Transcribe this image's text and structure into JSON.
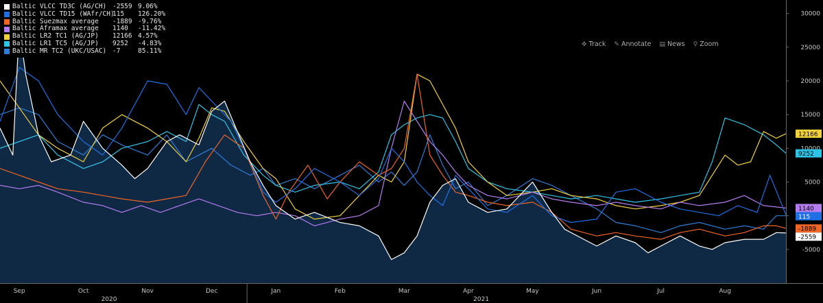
{
  "legend": [
    {
      "name": "Baltic VLCC TD3C (AG/CH)",
      "value": "-2559",
      "change": "9.06%",
      "color": "#ffffff"
    },
    {
      "name": "Baltic VLCC TD15 (WAfr/CH)",
      "value": "115",
      "change": "126.20%",
      "color": "#1f6fe5"
    },
    {
      "name": "Baltic Suezmax average",
      "value": "-1889",
      "change": "-9.76%",
      "color": "#f06424"
    },
    {
      "name": "Baltic Aframax average",
      "value": "1140",
      "change": "-11.42%",
      "color": "#b57cf0"
    },
    {
      "name": "Baltic LR2 TC1 (AG/JP)",
      "value": "12166",
      "change": "4.57%",
      "color": "#f2d23c"
    },
    {
      "name": "Baltic LR1 TC5 (AG/JP)",
      "value": "9252",
      "change": "-4.83%",
      "color": "#2ec4e6"
    },
    {
      "name": "Baltic MR TC2 (UKC/USAC)",
      "value": "-7",
      "change": "85.11%",
      "color": "#2f7dd6"
    }
  ],
  "toolbar": {
    "track": "Track",
    "annotate": "Annotate",
    "news": "News",
    "zoom": "Zoom"
  },
  "chart_data": {
    "type": "line",
    "x_unit": "month (Sep 2020 = 0)",
    "xlim": [
      -0.3,
      11.95
    ],
    "ylim": [
      -10000,
      32000
    ],
    "y_ticks": [
      -5000,
      0,
      5000,
      10000,
      15000,
      20000,
      25000,
      30000
    ],
    "y_tick_labels": [
      "-5000",
      "0",
      "5000",
      "10000",
      "15000",
      "20000",
      "25000",
      "30000"
    ],
    "x_ticks": [
      0,
      1,
      2,
      3,
      4,
      5,
      6,
      7,
      8,
      9,
      10,
      11
    ],
    "x_tick_labels": [
      "Sep",
      "Oct",
      "Nov",
      "Dec",
      "Jan",
      "Feb",
      "Mar",
      "Apr",
      "May",
      "Jun",
      "Jul",
      "Aug"
    ],
    "year_labels": [
      {
        "label": "2020",
        "x": 1.4
      },
      {
        "label": "2021",
        "x": 7.2
      }
    ],
    "year_boundary": 3.55,
    "grid": false,
    "axis_position": "right",
    "series": [
      {
        "name": "Baltic VLCC TD3C (AG/CH)",
        "color": "#ffffff",
        "fill": "#0f2945",
        "x": [
          -0.3,
          -0.1,
          0.0,
          0.1,
          0.3,
          0.5,
          0.8,
          1.0,
          1.3,
          1.6,
          1.8,
          2.0,
          2.3,
          2.5,
          2.8,
          3.0,
          3.2,
          3.4,
          3.6,
          3.8,
          4.0,
          4.3,
          4.6,
          5.0,
          5.3,
          5.6,
          5.8,
          6.0,
          6.2,
          6.4,
          6.6,
          6.8,
          7.0,
          7.3,
          7.6,
          8.0,
          8.3,
          8.5,
          8.8,
          9.0,
          9.3,
          9.6,
          9.8,
          10.0,
          10.3,
          10.6,
          10.8,
          11.0,
          11.3,
          11.6,
          11.8,
          11.95
        ],
        "y": [
          13000,
          9000,
          28000,
          21000,
          12000,
          8000,
          9000,
          14000,
          10000,
          7500,
          5500,
          7000,
          11000,
          12000,
          10500,
          15500,
          17000,
          12500,
          8000,
          4500,
          1500,
          -500,
          500,
          -1000,
          -1500,
          -3000,
          -6500,
          -5500,
          -3000,
          2000,
          4500,
          5500,
          2000,
          500,
          1000,
          5000,
          500,
          -2000,
          -3500,
          -4500,
          -3000,
          -4000,
          -5500,
          -4500,
          -3000,
          -4500,
          -5000,
          -4000,
          -3500,
          -3500,
          -2500,
          -2559
        ]
      },
      {
        "name": "Baltic VLCC TD15 (WAfr/CH)",
        "color": "#1f6fe5",
        "x": [
          -0.3,
          0.0,
          0.3,
          0.6,
          1.0,
          1.3,
          1.6,
          2.0,
          2.3,
          2.6,
          2.8,
          3.0,
          3.3,
          3.6,
          3.8,
          4.0,
          4.3,
          4.6,
          5.0,
          5.3,
          5.6,
          5.8,
          6.0,
          6.2,
          6.4,
          6.6,
          6.8,
          7.0,
          7.3,
          7.6,
          8.0,
          8.3,
          8.6,
          9.0,
          9.3,
          9.6,
          10.0,
          10.3,
          10.6,
          10.9,
          11.2,
          11.5,
          11.7,
          11.95
        ],
        "y": [
          14000,
          22000,
          20000,
          15000,
          11000,
          9000,
          13000,
          20000,
          19500,
          15000,
          19000,
          17000,
          14000,
          8000,
          3500,
          2000,
          4000,
          7000,
          5000,
          3000,
          5500,
          10000,
          8000,
          5000,
          3000,
          1500,
          6000,
          4000,
          1000,
          500,
          3000,
          0,
          -1000,
          -500,
          3500,
          4000,
          2000,
          1000,
          500,
          0,
          1500,
          500,
          6000,
          115
        ]
      },
      {
        "name": "Baltic Suezmax average",
        "color": "#f06424",
        "x": [
          -0.3,
          0.0,
          0.3,
          0.6,
          1.0,
          1.3,
          1.6,
          2.0,
          2.3,
          2.6,
          2.9,
          3.2,
          3.5,
          3.8,
          4.0,
          4.2,
          4.5,
          4.8,
          5.0,
          5.3,
          5.6,
          5.8,
          6.0,
          6.2,
          6.4,
          6.6,
          6.8,
          7.0,
          7.3,
          7.6,
          8.0,
          8.3,
          8.6,
          9.0,
          9.3,
          9.6,
          10.0,
          10.3,
          10.6,
          11.0,
          11.3,
          11.6,
          11.8,
          11.95
        ],
        "y": [
          7000,
          6000,
          5000,
          4000,
          3500,
          3000,
          2500,
          2000,
          2500,
          3000,
          8000,
          12000,
          10000,
          3000,
          -500,
          3500,
          7500,
          2500,
          5000,
          8000,
          6000,
          7000,
          10000,
          21000,
          9000,
          6000,
          3500,
          3000,
          2000,
          1500,
          2000,
          500,
          -2000,
          -3000,
          -2500,
          -3000,
          -3500,
          -2500,
          -2000,
          -3000,
          -2500,
          -1500,
          -1500,
          -1889
        ]
      },
      {
        "name": "Baltic Aframax average",
        "color": "#b57cf0",
        "x": [
          -0.3,
          0.0,
          0.3,
          0.6,
          1.0,
          1.3,
          1.6,
          1.9,
          2.2,
          2.5,
          2.8,
          3.1,
          3.4,
          3.7,
          4.0,
          4.3,
          4.6,
          5.0,
          5.3,
          5.6,
          5.8,
          6.0,
          6.2,
          6.4,
          6.6,
          6.8,
          7.0,
          7.3,
          7.6,
          8.0,
          8.3,
          8.6,
          9.0,
          9.3,
          9.6,
          10.0,
          10.3,
          10.6,
          11.0,
          11.3,
          11.6,
          11.95
        ],
        "y": [
          4500,
          4000,
          4500,
          3500,
          2000,
          1500,
          500,
          1500,
          500,
          1500,
          2500,
          1500,
          500,
          0,
          500,
          0,
          -1500,
          -500,
          0,
          1500,
          10000,
          17000,
          14000,
          11000,
          9000,
          6500,
          4500,
          3000,
          2500,
          3500,
          2500,
          2000,
          1500,
          2000,
          1500,
          1000,
          2000,
          1500,
          2000,
          3000,
          1500,
          1140
        ]
      },
      {
        "name": "Baltic LR2 TC1 (AG/JP)",
        "color": "#f2d23c",
        "x": [
          -0.3,
          0.0,
          0.3,
          0.6,
          1.0,
          1.3,
          1.6,
          2.0,
          2.3,
          2.6,
          2.8,
          3.0,
          3.2,
          3.5,
          3.8,
          4.0,
          4.3,
          4.6,
          5.0,
          5.3,
          5.6,
          5.8,
          6.0,
          6.2,
          6.4,
          6.6,
          6.8,
          7.0,
          7.3,
          7.6,
          8.0,
          8.3,
          8.6,
          9.0,
          9.3,
          9.6,
          10.0,
          10.3,
          10.6,
          10.8,
          11.0,
          11.2,
          11.4,
          11.6,
          11.8,
          11.95
        ],
        "y": [
          20000,
          16000,
          12000,
          10000,
          8000,
          13000,
          15000,
          13000,
          11000,
          8000,
          11500,
          16000,
          15500,
          11000,
          7000,
          5500,
          1000,
          -500,
          0,
          3000,
          6000,
          5000,
          8000,
          21000,
          20000,
          16500,
          13000,
          8000,
          5000,
          3000,
          3500,
          4000,
          3000,
          2500,
          1500,
          1000,
          1500,
          2000,
          3000,
          6000,
          9000,
          7500,
          8000,
          12500,
          11500,
          12166
        ]
      },
      {
        "name": "Baltic LR1 TC5 (AG/JP)",
        "color": "#2ec4e6",
        "x": [
          -0.3,
          0.0,
          0.3,
          0.6,
          1.0,
          1.3,
          1.6,
          2.0,
          2.3,
          2.6,
          2.8,
          3.0,
          3.2,
          3.5,
          3.8,
          4.0,
          4.3,
          4.6,
          5.0,
          5.3,
          5.6,
          5.8,
          6.0,
          6.2,
          6.4,
          6.6,
          6.8,
          7.0,
          7.3,
          7.6,
          8.0,
          8.3,
          8.6,
          9.0,
          9.3,
          9.6,
          10.0,
          10.3,
          10.6,
          10.8,
          11.0,
          11.3,
          11.6,
          11.8,
          11.95
        ],
        "y": [
          10000,
          11000,
          12000,
          9000,
          7000,
          8000,
          10000,
          11000,
          12500,
          11000,
          16500,
          15000,
          14000,
          9000,
          6000,
          4500,
          3500,
          4500,
          5000,
          4000,
          6500,
          12000,
          13500,
          14500,
          15000,
          14500,
          11000,
          7000,
          5000,
          4000,
          3500,
          3000,
          2500,
          3000,
          2500,
          2000,
          2500,
          3000,
          3500,
          8000,
          14500,
          13500,
          12000,
          10500,
          9252
        ]
      },
      {
        "name": "Baltic MR TC2 (UKC/USAC)",
        "color": "#2f7dd6",
        "x": [
          -0.3,
          0.0,
          0.3,
          0.6,
          1.0,
          1.3,
          1.6,
          2.0,
          2.3,
          2.6,
          2.8,
          3.0,
          3.3,
          3.6,
          3.8,
          4.0,
          4.3,
          4.6,
          5.0,
          5.3,
          5.6,
          5.8,
          6.0,
          6.2,
          6.4,
          6.6,
          6.8,
          7.0,
          7.3,
          7.6,
          8.0,
          8.3,
          8.6,
          9.0,
          9.3,
          9.6,
          10.0,
          10.3,
          10.6,
          11.0,
          11.3,
          11.6,
          11.8,
          11.95
        ],
        "y": [
          15000,
          16000,
          15000,
          11000,
          9000,
          12000,
          10500,
          9000,
          12000,
          8000,
          9000,
          10000,
          7500,
          6000,
          7000,
          4500,
          5500,
          4000,
          6000,
          7500,
          5000,
          6500,
          4500,
          6500,
          12000,
          7500,
          4000,
          5000,
          1500,
          3000,
          5500,
          4500,
          3000,
          1000,
          -1000,
          -1500,
          -2500,
          -1500,
          -1000,
          -2000,
          -1500,
          -2000,
          0,
          -7
        ]
      }
    ],
    "flags": [
      {
        "label": "12166",
        "value": 12166,
        "bg": "#f2d23c",
        "fg": "#000000"
      },
      {
        "label": "9252",
        "value": 9252,
        "bg": "#2ec4e6",
        "fg": "#000000"
      },
      {
        "label": "1140",
        "value": 1140,
        "bg": "#b57cf0",
        "fg": "#000000"
      },
      {
        "label": "115",
        "value": 115,
        "bg": "#1f6fe5",
        "fg": "#ffffff"
      },
      {
        "label": "-1889",
        "value": -1889,
        "bg": "#f06424",
        "fg": "#000000"
      },
      {
        "label": "-2559",
        "value": -2559,
        "bg": "#ffffff",
        "fg": "#000000"
      }
    ]
  }
}
